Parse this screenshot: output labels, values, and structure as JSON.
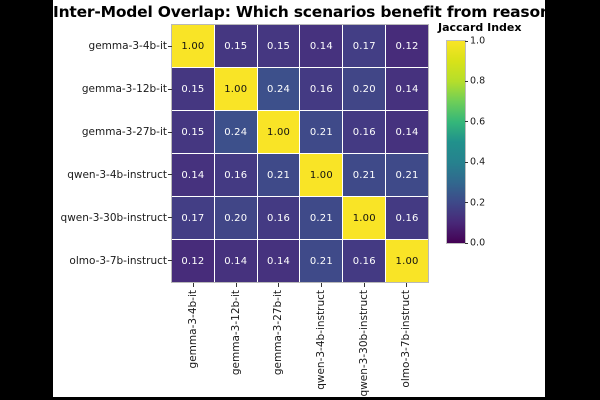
{
  "page": {
    "letterbox_color": "#000000",
    "canvas_color": "#ffffff"
  },
  "chart_data": {
    "type": "heatmap",
    "title": "Inter-Model Overlap: Which scenarios benefit from reasoning?",
    "x_categories": [
      "gemma-3-4b-it",
      "gemma-3-12b-it",
      "gemma-3-27b-it",
      "qwen-3-4b-instruct",
      "qwen-3-30b-instruct",
      "olmo-3-7b-instruct"
    ],
    "y_categories": [
      "gemma-3-4b-it",
      "gemma-3-12b-it",
      "gemma-3-27b-it",
      "qwen-3-4b-instruct",
      "qwen-3-30b-instruct",
      "olmo-3-7b-instruct"
    ],
    "matrix": [
      [
        1.0,
        0.15,
        0.15,
        0.14,
        0.17,
        0.12
      ],
      [
        0.15,
        1.0,
        0.24,
        0.16,
        0.2,
        0.14
      ],
      [
        0.15,
        0.24,
        1.0,
        0.21,
        0.16,
        0.14
      ],
      [
        0.14,
        0.16,
        0.21,
        1.0,
        0.21,
        0.21
      ],
      [
        0.17,
        0.2,
        0.16,
        0.21,
        1.0,
        0.16
      ],
      [
        0.12,
        0.14,
        0.14,
        0.21,
        0.16,
        1.0
      ]
    ],
    "value_decimals": 2,
    "colormap": "viridis",
    "colorbar": {
      "label": "Jaccard Index",
      "ticks": [
        "1.0",
        "0.8",
        "0.6",
        "0.4",
        "0.2",
        "0.0"
      ],
      "vmin": 0.0,
      "vmax": 1.0,
      "gradient_stops": [
        {
          "at": "0%",
          "color": "#f9e426"
        },
        {
          "at": "10%",
          "color": "#d8e219"
        },
        {
          "at": "20%",
          "color": "#b5de2b"
        },
        {
          "at": "30%",
          "color": "#6ece58"
        },
        {
          "at": "40%",
          "color": "#35b779"
        },
        {
          "at": "50%",
          "color": "#21918c"
        },
        {
          "at": "60%",
          "color": "#26828e"
        },
        {
          "at": "70%",
          "color": "#31688e"
        },
        {
          "at": "80%",
          "color": "#3e4989"
        },
        {
          "at": "90%",
          "color": "#482878"
        },
        {
          "at": "100%",
          "color": "#440154"
        }
      ]
    },
    "value_colors": {
      "1.00": "#f9e426",
      "0.24": "#3d508b",
      "0.21": "#3f4a89",
      "0.20": "#414687",
      "0.17": "#433e85",
      "0.16": "#443a83",
      "0.15": "#453781",
      "0.14": "#46327e",
      "0.12": "#472c7a"
    },
    "cell_text_on_dark": "#ffffff",
    "cell_text_on_light": "#111111",
    "tick_color": "#333333"
  }
}
